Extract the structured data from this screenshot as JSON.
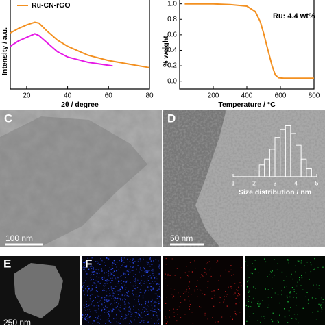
{
  "chart_data": [
    {
      "type": "line",
      "xlabel": "2θ / degree",
      "ylabel": "Intensity / a.u.",
      "xlim": [
        12,
        80
      ],
      "xticks": [
        20,
        40,
        60,
        80
      ],
      "ylim": [
        0,
        1
      ],
      "series": [
        {
          "name": "Ru-CN-rGO",
          "color": "#f39020",
          "x": [
            12,
            16,
            20,
            24,
            26,
            30,
            35,
            40,
            50,
            60,
            70,
            80
          ],
          "values": [
            0.63,
            0.68,
            0.72,
            0.75,
            0.74,
            0.65,
            0.55,
            0.48,
            0.38,
            0.32,
            0.28,
            0.24
          ]
        },
        {
          "color": "#e619e6",
          "x": [
            12,
            16,
            20,
            24,
            26,
            30,
            35,
            40,
            50,
            62
          ],
          "values": [
            0.48,
            0.54,
            0.58,
            0.62,
            0.6,
            0.52,
            0.42,
            0.36,
            0.3,
            0.26
          ]
        }
      ]
    },
    {
      "type": "line",
      "xlabel": "Temperature / °C",
      "ylabel": "% weight",
      "annotation": "Ru: 4.4 wt%",
      "xlim": [
        0,
        800
      ],
      "xticks": [
        200,
        400,
        600,
        800
      ],
      "ylim": [
        -0.1,
        1.05
      ],
      "yticks": [
        {
          "value": 0,
          "label": "0.0"
        },
        0.2,
        0.4,
        0.6,
        0.8,
        {
          "value": 1,
          "label": "1.0"
        }
      ],
      "series": [
        {
          "color": "#f39020",
          "x": [
            30,
            200,
            300,
            400,
            450,
            480,
            500,
            520,
            550,
            570,
            590,
            620,
            700,
            800
          ],
          "values": [
            1.0,
            1.0,
            0.99,
            0.97,
            0.9,
            0.77,
            0.62,
            0.45,
            0.2,
            0.08,
            0.045,
            0.04,
            0.04,
            0.04
          ]
        }
      ]
    },
    {
      "type": "histogram",
      "xlabel": "Size distribution / nm",
      "xlim": [
        1,
        5
      ],
      "xticks": [
        1,
        2,
        3,
        4,
        5
      ],
      "ylim": [
        0,
        30
      ],
      "bins": [
        2,
        2.25,
        2.5,
        2.75,
        3,
        3.25,
        3.5,
        3.75,
        4,
        4.25,
        4.5,
        4.75
      ],
      "counts": [
        3,
        6,
        9,
        14,
        20,
        24,
        26,
        22,
        16,
        9,
        4
      ]
    }
  ],
  "panels": {
    "labels": [
      "C",
      "D",
      "E",
      "F"
    ],
    "scale_bars": [
      "100 nm",
      "50 nm",
      "250 nm"
    ]
  }
}
